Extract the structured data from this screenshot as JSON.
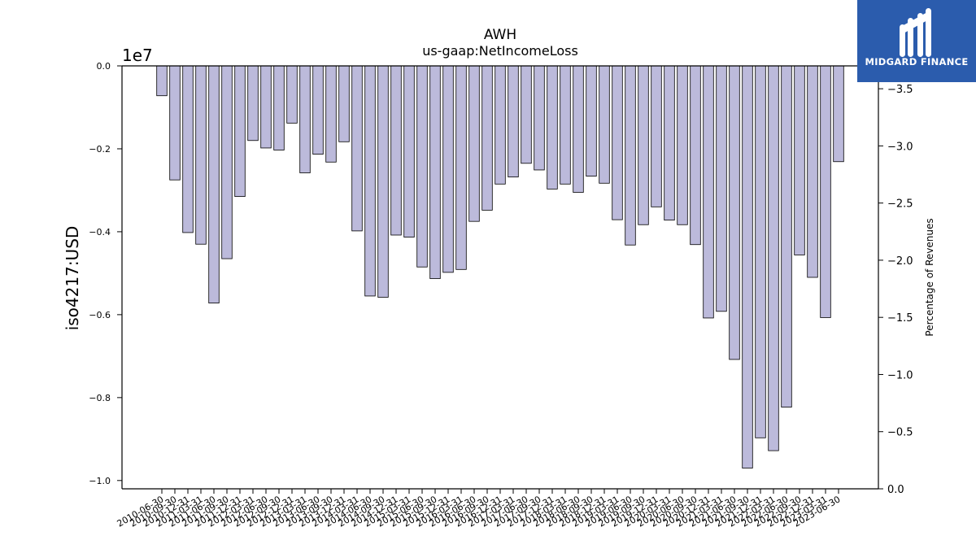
{
  "brand": {
    "name": "MIDGARD FINANCE",
    "background_color": "#2b5cad",
    "icon": "midgard-m-logo-icon"
  },
  "chart_data": {
    "type": "bar",
    "title": "AWH",
    "subtitle": "us-gaap:NetIncomeLoss",
    "ylabel": "iso4217:USD",
    "y_offset_text": "1e7",
    "y2label": "Percentage of Revenues",
    "ylim": [
      -10200000,
      0
    ],
    "y_ticks": [
      0,
      -2000000,
      -4000000,
      -6000000,
      -8000000,
      -10000000
    ],
    "y_tick_labels": [
      "0.0",
      "−0.2",
      "−0.4",
      "−0.6",
      "−0.8",
      "−1.0"
    ],
    "y2lim": [
      0.0,
      3.7
    ],
    "y2_ticks": [
      0.0,
      0.5,
      1.0,
      1.5,
      2.0,
      2.5,
      3.0,
      3.5
    ],
    "y2_tick_labels": [
      "0.0",
      "−0.5",
      "−1.0",
      "−1.5",
      "−2.0",
      "−2.5",
      "−3.0",
      "−3.5"
    ],
    "bar_color": "#bcbadb",
    "bar_edge_color": "#000000",
    "grid": false,
    "categories": [
      "2010-06-30",
      "2010-09-30",
      "2010-12-31",
      "2011-03-31",
      "2011-06-30",
      "2011-09-30",
      "2011-12-31",
      "2012-03-31",
      "2012-06-30",
      "2012-09-30",
      "2012-12-31",
      "2013-03-31",
      "2013-06-30",
      "2013-09-30",
      "2013-12-31",
      "2014-03-31",
      "2014-06-30",
      "2014-09-30",
      "2014-12-31",
      "2015-03-31",
      "2015-06-30",
      "2015-09-30",
      "2015-12-31",
      "2016-03-31",
      "2016-06-30",
      "2016-09-30",
      "2016-12-31",
      "2017-03-31",
      "2017-06-30",
      "2017-09-30",
      "2017-12-31",
      "2018-03-31",
      "2018-06-30",
      "2018-09-30",
      "2018-12-31",
      "2019-03-31",
      "2019-06-30",
      "2019-09-30",
      "2019-12-31",
      "2020-03-31",
      "2020-06-30",
      "2020-09-30",
      "2020-12-31",
      "2021-03-31",
      "2021-06-30",
      "2021-09-30",
      "2021-12-31",
      "2022-03-31",
      "2022-06-30",
      "2022-09-30",
      "2022-12-31",
      "2023-03-31",
      "2023-06-30"
    ],
    "values": [
      -720000,
      -2750000,
      -4020000,
      -4300000,
      -5720000,
      -4650000,
      -3150000,
      -1800000,
      -1980000,
      -2030000,
      -1380000,
      -2580000,
      -2130000,
      -2320000,
      -1830000,
      -3980000,
      -5550000,
      -5580000,
      -4080000,
      -4130000,
      -4850000,
      -5130000,
      -4980000,
      -4910000,
      -3750000,
      -3480000,
      -2850000,
      -2680000,
      -2350000,
      -2510000,
      -2970000,
      -2850000,
      -3050000,
      -2660000,
      -2830000,
      -3710000,
      -4320000,
      -3830000,
      -3400000,
      -3720000,
      -3830000,
      -4310000,
      -6080000,
      -5920000,
      -7080000,
      -9700000,
      -8970000,
      -9280000,
      -8230000,
      -4560000,
      -5100000,
      -6070000,
      -2310000
    ]
  }
}
